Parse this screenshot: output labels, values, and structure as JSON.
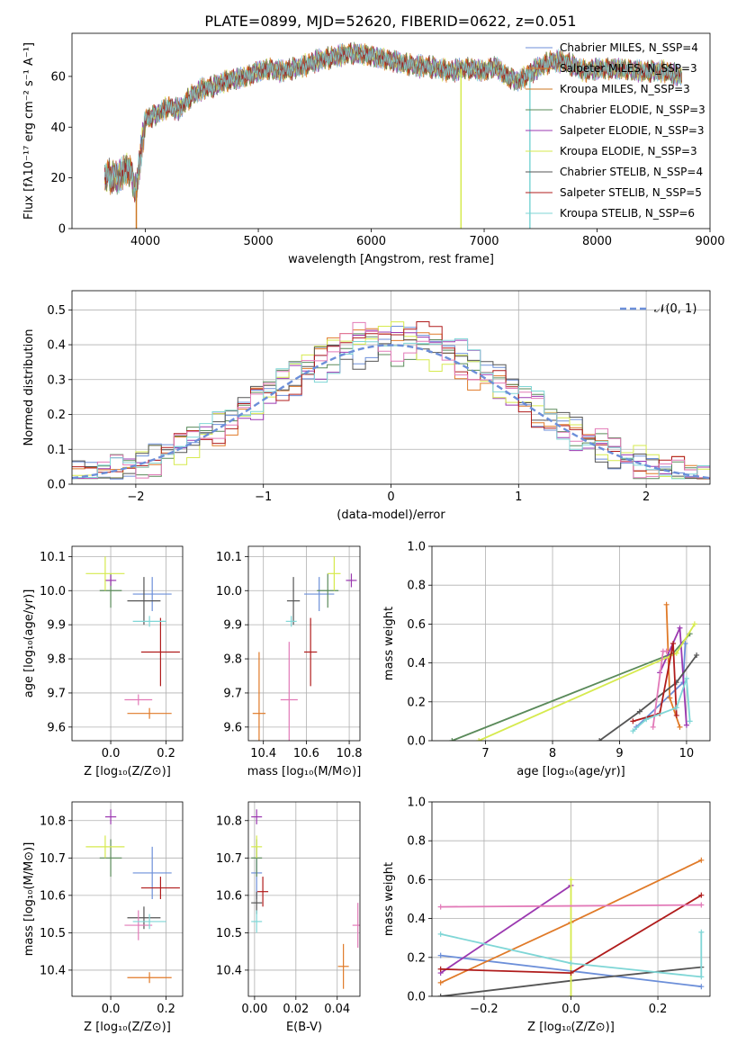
{
  "figure_title": "PLATE=0899, MJD=52620, FIBERID=0622, z=0.051",
  "palette": [
    "#6c8fd9",
    "#e07a28",
    "#3f8f3f",
    "#9b38b0",
    "#d6ea4e",
    "#555555",
    "#b01c1c",
    "#e27ab8",
    "#7fd6d6",
    "#cc7722",
    "#5a8a5a",
    "#a0a0a0"
  ],
  "chart_data": [
    {
      "id": "spectrum",
      "type": "line",
      "title": "PLATE=0899, MJD=52620, FIBERID=0622, z=0.051",
      "xlabel": "wavelength [Angstrom, rest frame]",
      "ylabel": "Flux [fλ10⁻¹⁷ erg cm⁻² s⁻¹ A⁻¹]",
      "xlim": [
        3350,
        9000
      ],
      "ylim": [
        0,
        77
      ],
      "xticks": [
        4000,
        5000,
        6000,
        7000,
        8000,
        9000
      ],
      "yticks": [
        0,
        20,
        40,
        60
      ],
      "grid": false,
      "legend_position": "top-right",
      "legend": [
        "Chabrier MILES, N_SSP=4",
        "Salpeter MILES, N_SSP=3",
        "Kroupa MILES, N_SSP=3",
        "Chabrier ELODIE, N_SSP=3",
        "Salpeter ELODIE, N_SSP=3",
        "Kroupa ELODIE, N_SSP=3",
        "Chabrier STELIB, N_SSP=4",
        "Salpeter STELIB, N_SSP=5",
        "Kroupa STELIB, N_SSP=6"
      ],
      "legend_colors": [
        "#6c8fd9",
        "#e07a28",
        "#cc7722",
        "#5a8a5a",
        "#9b38b0",
        "#d6ea4e",
        "#555555",
        "#b01c1c",
        "#7fd6d6"
      ],
      "continuum": [
        [
          3640,
          21
        ],
        [
          3750,
          20
        ],
        [
          3850,
          24
        ],
        [
          3920,
          15
        ],
        [
          3960,
          30
        ],
        [
          4000,
          43
        ],
        [
          4100,
          45
        ],
        [
          4200,
          48
        ],
        [
          4300,
          47
        ],
        [
          4400,
          52
        ],
        [
          4500,
          55
        ],
        [
          4600,
          56
        ],
        [
          4700,
          58
        ],
        [
          4800,
          59
        ],
        [
          4900,
          60
        ],
        [
          5000,
          62
        ],
        [
          5100,
          63
        ],
        [
          5200,
          62
        ],
        [
          5300,
          63
        ],
        [
          5400,
          64
        ],
        [
          5500,
          66
        ],
        [
          5600,
          67
        ],
        [
          5700,
          68
        ],
        [
          5800,
          69
        ],
        [
          5900,
          69
        ],
        [
          6000,
          68
        ],
        [
          6100,
          67
        ],
        [
          6200,
          66
        ],
        [
          6300,
          65
        ],
        [
          6400,
          64
        ],
        [
          6500,
          64
        ],
        [
          6600,
          63
        ],
        [
          6700,
          62
        ],
        [
          6800,
          63
        ],
        [
          6900,
          63
        ],
        [
          7000,
          62
        ],
        [
          7100,
          64
        ],
        [
          7200,
          60
        ],
        [
          7300,
          58
        ],
        [
          7400,
          61
        ],
        [
          7500,
          64
        ],
        [
          7600,
          66
        ],
        [
          7700,
          66
        ],
        [
          7800,
          64
        ],
        [
          7900,
          62
        ],
        [
          8000,
          63
        ],
        [
          8200,
          63
        ],
        [
          8400,
          62
        ],
        [
          8600,
          62
        ],
        [
          8750,
          60
        ]
      ],
      "dips": [
        [
          3920,
          0
        ],
        [
          6795,
          0
        ],
        [
          7405,
          0
        ]
      ]
    },
    {
      "id": "residuals",
      "type": "histogram",
      "xlabel": "(data-model)/error",
      "ylabel": "Normed distribution",
      "xlim": [
        -2.5,
        2.5
      ],
      "ylim": [
        0,
        0.555
      ],
      "xticks": [
        -2,
        -1,
        0,
        1,
        2
      ],
      "yticks": [
        0.0,
        0.1,
        0.2,
        0.3,
        0.4,
        0.5
      ],
      "grid": true,
      "legend_position": "top-right",
      "legend": [
        "𝒩(0, 1)"
      ],
      "bin_width": 0.1,
      "hist_colors": [
        "#6c8fd9",
        "#e07a28",
        "#5a8a5a",
        "#9b38b0",
        "#d6ea4e",
        "#555555",
        "#b01c1c",
        "#e27ab8",
        "#7fd6d6"
      ]
    },
    {
      "id": "age-vs-Z",
      "type": "scatter",
      "xlabel": "Z [log₁₀(Z/Z⊙)]",
      "ylabel": "age  [log₁₀(age/yr)]",
      "xlim": [
        -0.14,
        0.26
      ],
      "ylim": [
        9.56,
        10.13
      ],
      "xticks": [
        0.0,
        0.2
      ],
      "yticks": [
        9.6,
        9.7,
        9.8,
        9.9,
        10.0,
        10.1
      ],
      "grid": true,
      "points": [
        {
          "x": 0.15,
          "y": 9.99,
          "xerr": 0.07,
          "yerr": 0.05,
          "color": "#6c8fd9"
        },
        {
          "x": 0.14,
          "y": 9.64,
          "xerr": 0.08,
          "yerr": 0.0,
          "color": "#e07a28"
        },
        {
          "x": 0.0,
          "y": 10.0,
          "xerr": 0.04,
          "yerr": 0.05,
          "color": "#5a8a5a"
        },
        {
          "x": 0.0,
          "y": 10.03,
          "xerr": 0.02,
          "yerr": 0.01,
          "color": "#9b38b0"
        },
        {
          "x": -0.02,
          "y": 10.05,
          "xerr": 0.07,
          "yerr": 0.05,
          "color": "#d6ea4e"
        },
        {
          "x": 0.12,
          "y": 9.97,
          "xerr": 0.06,
          "yerr": 0.07,
          "color": "#555555"
        },
        {
          "x": 0.18,
          "y": 9.82,
          "xerr": 0.07,
          "yerr": 0.1,
          "color": "#b01c1c"
        },
        {
          "x": 0.1,
          "y": 9.68,
          "xerr": 0.05,
          "yerr": 0.0,
          "color": "#e27ab8"
        },
        {
          "x": 0.14,
          "y": 9.91,
          "xerr": 0.06,
          "yerr": 0.01,
          "color": "#7fd6d6"
        }
      ]
    },
    {
      "id": "age-vs-mass",
      "type": "scatter",
      "xlabel": "mass [log₁₀(M/M⊙)]",
      "ylabel": "",
      "xlim": [
        10.33,
        10.85
      ],
      "ylim": [
        9.56,
        10.13
      ],
      "xticks": [
        10.4,
        10.6,
        10.8
      ],
      "yticks": [
        9.6,
        9.7,
        9.8,
        9.9,
        10.0,
        10.1
      ],
      "grid": true,
      "points": [
        {
          "x": 10.66,
          "y": 9.99,
          "xerr": 0.07,
          "yerr": 0.05,
          "color": "#6c8fd9"
        },
        {
          "x": 10.38,
          "y": 9.64,
          "xerr": 0.03,
          "yerr": 0.18,
          "color": "#e07a28"
        },
        {
          "x": 10.7,
          "y": 10.0,
          "xerr": 0.05,
          "yerr": 0.05,
          "color": "#5a8a5a"
        },
        {
          "x": 10.81,
          "y": 10.03,
          "xerr": 0.02,
          "yerr": 0.02,
          "color": "#9b38b0"
        },
        {
          "x": 10.73,
          "y": 10.05,
          "xerr": 0.03,
          "yerr": 0.05,
          "color": "#d6ea4e"
        },
        {
          "x": 10.54,
          "y": 9.97,
          "xerr": 0.03,
          "yerr": 0.07,
          "color": "#555555"
        },
        {
          "x": 10.62,
          "y": 9.82,
          "xerr": 0.03,
          "yerr": 0.1,
          "color": "#b01c1c"
        },
        {
          "x": 10.52,
          "y": 9.68,
          "xerr": 0.04,
          "yerr": 0.17,
          "color": "#e27ab8"
        },
        {
          "x": 10.53,
          "y": 9.91,
          "xerr": 0.02,
          "yerr": 0.01,
          "color": "#7fd6d6"
        }
      ]
    },
    {
      "id": "weight-vs-age",
      "type": "line",
      "xlabel": "age  [log₁₀(age/yr)]",
      "ylabel": "mass weight",
      "xlim": [
        6.2,
        10.35
      ],
      "ylim": [
        0,
        1.0
      ],
      "xticks": [
        7,
        8,
        9,
        10
      ],
      "yticks": [
        0.0,
        0.2,
        0.4,
        0.6,
        0.8,
        1.0
      ],
      "grid": true,
      "series": [
        {
          "color": "#6c8fd9",
          "points": [
            [
              9.25,
              0.07
            ],
            [
              9.95,
              0.3
            ],
            [
              9.98,
              0.5
            ]
          ]
        },
        {
          "color": "#e07a28",
          "points": [
            [
              9.7,
              0.7
            ],
            [
              9.75,
              0.22
            ],
            [
              9.9,
              0.07
            ]
          ]
        },
        {
          "color": "#5a8a5a",
          "points": [
            [
              6.5,
              0.0
            ],
            [
              9.8,
              0.45
            ],
            [
              10.05,
              0.55
            ]
          ]
        },
        {
          "color": "#9b38b0",
          "points": [
            [
              9.6,
              0.35
            ],
            [
              9.9,
              0.58
            ],
            [
              10.0,
              0.08
            ]
          ]
        },
        {
          "color": "#d6ea4e",
          "points": [
            [
              6.9,
              0.0
            ],
            [
              9.85,
              0.45
            ],
            [
              10.12,
              0.6
            ]
          ]
        },
        {
          "color": "#555555",
          "points": [
            [
              8.7,
              0.0
            ],
            [
              9.3,
              0.15
            ],
            [
              9.85,
              0.3
            ],
            [
              10.15,
              0.44
            ]
          ]
        },
        {
          "color": "#b01c1c",
          "points": [
            [
              9.2,
              0.1
            ],
            [
              9.6,
              0.14
            ],
            [
              9.8,
              0.5
            ],
            [
              9.85,
              0.13
            ]
          ]
        },
        {
          "color": "#e27ab8",
          "points": [
            [
              9.5,
              0.07
            ],
            [
              9.65,
              0.46
            ],
            [
              9.7,
              0.46
            ]
          ]
        },
        {
          "color": "#7fd6d6",
          "points": [
            [
              9.2,
              0.05
            ],
            [
              9.4,
              0.11
            ],
            [
              9.85,
              0.17
            ],
            [
              10.0,
              0.32
            ],
            [
              10.05,
              0.1
            ]
          ]
        }
      ]
    },
    {
      "id": "mass-vs-Z",
      "type": "scatter",
      "xlabel": "Z [log₁₀(Z/Z⊙)]",
      "ylabel": "mass [log₁₀(M/M⊙)]",
      "xlim": [
        -0.14,
        0.26
      ],
      "ylim": [
        10.33,
        10.85
      ],
      "xticks": [
        0.0,
        0.2
      ],
      "yticks": [
        10.4,
        10.5,
        10.6,
        10.7,
        10.8
      ],
      "grid": true,
      "points": [
        {
          "x": 0.15,
          "y": 10.66,
          "xerr": 0.07,
          "yerr": 0.07,
          "color": "#6c8fd9"
        },
        {
          "x": 0.14,
          "y": 10.38,
          "xerr": 0.08,
          "yerr": 0.0,
          "color": "#e07a28"
        },
        {
          "x": 0.0,
          "y": 10.7,
          "xerr": 0.04,
          "yerr": 0.05,
          "color": "#5a8a5a"
        },
        {
          "x": 0.0,
          "y": 10.81,
          "xerr": 0.02,
          "yerr": 0.02,
          "color": "#9b38b0"
        },
        {
          "x": -0.02,
          "y": 10.73,
          "xerr": 0.07,
          "yerr": 0.03,
          "color": "#d6ea4e"
        },
        {
          "x": 0.12,
          "y": 10.54,
          "xerr": 0.06,
          "yerr": 0.03,
          "color": "#555555"
        },
        {
          "x": 0.18,
          "y": 10.62,
          "xerr": 0.07,
          "yerr": 0.03,
          "color": "#b01c1c"
        },
        {
          "x": 0.1,
          "y": 10.52,
          "xerr": 0.05,
          "yerr": 0.04,
          "color": "#e27ab8"
        },
        {
          "x": 0.14,
          "y": 10.53,
          "xerr": 0.06,
          "yerr": 0.02,
          "color": "#7fd6d6"
        }
      ]
    },
    {
      "id": "mass-vs-EBV",
      "type": "scatter",
      "xlabel": "E(B-V)",
      "ylabel": "",
      "xlim": [
        -0.003,
        0.051
      ],
      "ylim": [
        10.33,
        10.85
      ],
      "xticks": [
        0.0,
        0.02,
        0.04
      ],
      "yticks": [
        10.4,
        10.5,
        10.6,
        10.7,
        10.8
      ],
      "grid": true,
      "points": [
        {
          "x": 0.001,
          "y": 10.66,
          "xerr": 0,
          "yerr": 0.07,
          "color": "#6c8fd9"
        },
        {
          "x": 0.043,
          "y": 10.41,
          "xerr": 0,
          "yerr": 0.06,
          "color": "#e07a28"
        },
        {
          "x": 0.001,
          "y": 10.7,
          "xerr": 0,
          "yerr": 0.05,
          "color": "#5a8a5a"
        },
        {
          "x": 0.001,
          "y": 10.81,
          "xerr": 0,
          "yerr": 0.02,
          "color": "#9b38b0"
        },
        {
          "x": 0.001,
          "y": 10.73,
          "xerr": 0,
          "yerr": 0.03,
          "color": "#d6ea4e"
        },
        {
          "x": 0.001,
          "y": 10.58,
          "xerr": 0,
          "yerr": 0.03,
          "color": "#555555"
        },
        {
          "x": 0.004,
          "y": 10.61,
          "xerr": 0,
          "yerr": 0.04,
          "color": "#b01c1c"
        },
        {
          "x": 0.05,
          "y": 10.52,
          "xerr": 0,
          "yerr": 0.06,
          "color": "#e27ab8"
        },
        {
          "x": 0.001,
          "y": 10.53,
          "xerr": 0,
          "yerr": 0.03,
          "color": "#7fd6d6"
        }
      ]
    },
    {
      "id": "weight-vs-Z",
      "type": "line",
      "xlabel": "Z [log₁₀(Z/Z⊙)]",
      "ylabel": "mass weight",
      "xlim": [
        -0.32,
        0.32
      ],
      "ylim": [
        0,
        1.0
      ],
      "xticks": [
        -0.2,
        0.0,
        0.2
      ],
      "yticks": [
        0.0,
        0.2,
        0.4,
        0.6,
        0.8,
        1.0
      ],
      "grid": true,
      "series": [
        {
          "color": "#6c8fd9",
          "points": [
            [
              -0.3,
              0.21
            ],
            [
              0.0,
              0.13
            ],
            [
              0.3,
              0.05
            ]
          ]
        },
        {
          "color": "#e07a28",
          "points": [
            [
              -0.3,
              0.07
            ],
            [
              0.0,
              0.38
            ],
            [
              0.3,
              0.7
            ]
          ]
        },
        {
          "color": "#555555",
          "points": [
            [
              -0.3,
              0.0
            ],
            [
              0.0,
              0.08
            ],
            [
              0.3,
              0.15
            ]
          ]
        },
        {
          "color": "#9b38b0",
          "points": [
            [
              -0.3,
              0.12
            ],
            [
              0.0,
              0.57
            ]
          ]
        },
        {
          "color": "#d6ea4e",
          "points": [
            [
              0.0,
              0.0
            ],
            [
              0.0,
              0.6
            ]
          ]
        },
        {
          "color": "#b01c1c",
          "points": [
            [
              -0.3,
              0.14
            ],
            [
              0.0,
              0.12
            ],
            [
              0.3,
              0.52
            ]
          ]
        },
        {
          "color": "#e27ab8",
          "points": [
            [
              -0.3,
              0.46
            ],
            [
              0.3,
              0.47
            ]
          ]
        },
        {
          "color": "#7fd6d6",
          "points": [
            [
              -0.3,
              0.32
            ],
            [
              0.0,
              0.17
            ],
            [
              0.3,
              0.1
            ],
            [
              0.3,
              0.33
            ]
          ]
        }
      ]
    }
  ]
}
